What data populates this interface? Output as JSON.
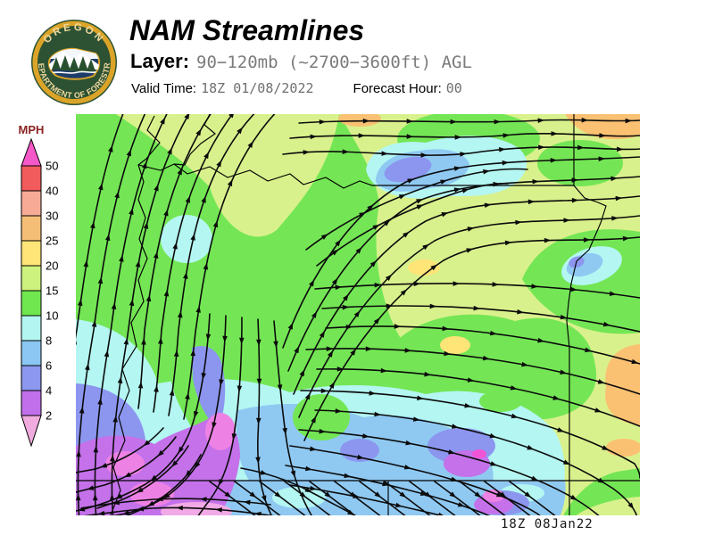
{
  "header": {
    "logo": {
      "top_text": "OREGON",
      "bottom_text": "DEPARTMENT OF FORESTRY"
    },
    "title": "NAM Streamlines",
    "layer_label": "Layer:",
    "layer_value": "90−120mb (~2700−3600ft) AGL",
    "valid_time_label": "Valid Time:",
    "valid_time": "18Z 01/08/2022",
    "forecast_hour_label": "Forecast Hour:",
    "forecast_hour": "00"
  },
  "legend": {
    "title": "MPH",
    "title_color": "#8B2323",
    "tick_values": [
      "50",
      "40",
      "30",
      "25",
      "20",
      "15",
      "10",
      "8",
      "6",
      "4",
      "2"
    ],
    "band_colors": [
      "#F25B5B",
      "#F7AB97",
      "#F5BE77",
      "#FFE478",
      "#CDF27D",
      "#70E74F",
      "#B3F6F1",
      "#8BC7F2",
      "#8C97F0",
      "#C26FEB"
    ],
    "above_max_color": "#F558C8",
    "below_min_color": "#F0ACDE"
  },
  "map": {
    "timestamp": "18Z 08Jan22",
    "colors": {
      "green": "#74E655",
      "yg": "#D9F18C",
      "yellow": "#FFE478",
      "orange": "#FBC172",
      "cyan": "#B4F6F2",
      "lblue": "#8FC9F2",
      "peri": "#8C96EF",
      "purple": "#C471EA",
      "magenta": "#EE82E4",
      "brightmagenta": "#F055D8",
      "pink": "#F2AAE6",
      "streamline": "#0B0B0B",
      "boundary": "#000000"
    }
  }
}
